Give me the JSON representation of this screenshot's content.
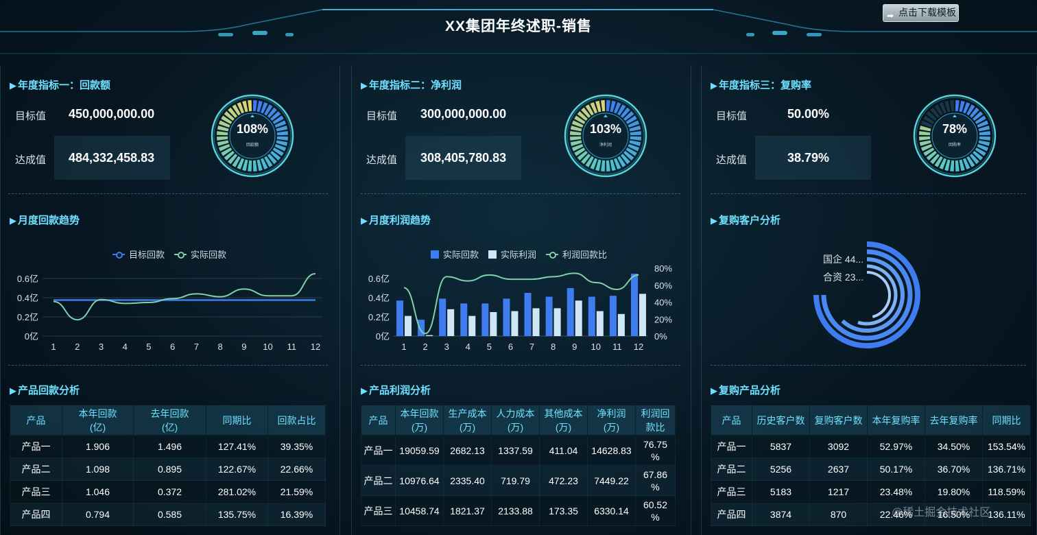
{
  "header": {
    "title": "XX集团年终述职-销售",
    "download_label": "点击下载模板"
  },
  "panels": [
    {
      "kpi_title": "年度指标一：回款额",
      "target_label": "目标值",
      "target_value": "450,000,000.00",
      "achieved_label": "达成值",
      "achieved_value": "484,332,458.83",
      "gauge_pct": "108%",
      "gauge_sub": "回款额",
      "gauge_fill": 1.0
    },
    {
      "kpi_title": "年度指标二：净利润",
      "target_label": "目标值",
      "target_value": "300,000,000.00",
      "achieved_label": "达成值",
      "achieved_value": "308,405,780.83",
      "gauge_pct": "103%",
      "gauge_sub": "净利润",
      "gauge_fill": 1.0
    },
    {
      "kpi_title": "年度指标三：复购率",
      "target_label": "目标值",
      "target_value": "50.00%",
      "achieved_label": "达成值",
      "achieved_value": "38.79%",
      "gauge_pct": "78%",
      "gauge_sub": "回购率",
      "gauge_fill": 0.78
    }
  ],
  "sections": {
    "monthly_payment": "月度回款趋势",
    "monthly_profit": "月度利润趋势",
    "repurchase_customers": "复购客户分析",
    "product_payment": "产品回款分析",
    "product_profit": "产品利润分析",
    "repurchase_products": "复购产品分析"
  },
  "chart_data": [
    {
      "type": "line",
      "x": [
        "1",
        "2",
        "3",
        "4",
        "5",
        "6",
        "7",
        "8",
        "9",
        "10",
        "11",
        "12"
      ],
      "yticks": [
        "0亿",
        "0.2亿",
        "0.4亿",
        "0.6亿"
      ],
      "ylim": [
        0,
        0.7
      ],
      "series": [
        {
          "name": "目标回款",
          "color": "#3f7cf0",
          "values": [
            0.375,
            0.375,
            0.375,
            0.375,
            0.375,
            0.375,
            0.375,
            0.375,
            0.375,
            0.375,
            0.375,
            0.375
          ]
        },
        {
          "name": "实际回款",
          "color": "#7fd1a8",
          "values": [
            0.36,
            0.17,
            0.38,
            0.34,
            0.35,
            0.39,
            0.44,
            0.41,
            0.49,
            0.42,
            0.42,
            0.65
          ]
        }
      ]
    },
    {
      "type": "bar",
      "categories": [
        "1",
        "2",
        "3",
        "4",
        "5",
        "6",
        "7",
        "8",
        "9",
        "10",
        "11",
        "12"
      ],
      "yticks": [
        "0亿",
        "0.2亿",
        "0.4亿",
        "0.6亿"
      ],
      "ylim": [
        0,
        0.7
      ],
      "y2ticks": [
        "0%",
        "20%",
        "40%",
        "60%",
        "80%"
      ],
      "y2lim": [
        0,
        80
      ],
      "series": [
        {
          "name": "实际回款",
          "color": "#3f7cf0",
          "values": [
            0.37,
            0.17,
            0.39,
            0.34,
            0.34,
            0.39,
            0.45,
            0.41,
            0.5,
            0.41,
            0.42,
            0.65
          ]
        },
        {
          "name": "实际利润",
          "color": "#cfe6f7",
          "values": [
            0.21,
            0.01,
            0.28,
            0.21,
            0.25,
            0.26,
            0.29,
            0.29,
            0.37,
            0.26,
            0.23,
            0.44
          ]
        },
        {
          "name": "利润回款比",
          "color": "#7fd1a8",
          "type": "line",
          "values": [
            57,
            3,
            70,
            65,
            72,
            67,
            67,
            70,
            74,
            63,
            55,
            72
          ]
        }
      ]
    },
    {
      "type": "pie",
      "categories": [
        "国企",
        "合资"
      ],
      "category_labels": [
        "国企 44...",
        "合资 23..."
      ],
      "values": [
        44,
        23
      ]
    }
  ],
  "table_payment": {
    "headers": [
      "产品",
      "本年回款\n(亿)",
      "去年回款\n(亿)",
      "同期比",
      "回款占比"
    ],
    "rows": [
      [
        "产品一",
        "1.906",
        "1.496",
        "127.41%",
        "39.35%"
      ],
      [
        "产品二",
        "1.098",
        "0.895",
        "122.67%",
        "22.66%"
      ],
      [
        "产品三",
        "1.046",
        "0.372",
        "281.02%",
        "21.59%"
      ],
      [
        "产品四",
        "0.794",
        "0.585",
        "135.75%",
        "16.39%"
      ]
    ]
  },
  "table_profit": {
    "headers": [
      "产品",
      "本年回款\n(万)",
      "生产成本\n(万)",
      "人力成本\n(万)",
      "其他成本\n(万)",
      "净利润\n(万)",
      "利润回\n款比"
    ],
    "rows": [
      [
        "产品一",
        "19059.59",
        "2682.13",
        "1337.59",
        "411.04",
        "14628.83",
        "76.75\n%"
      ],
      [
        "产品二",
        "10976.64",
        "2335.40",
        "719.79",
        "472.23",
        "7449.22",
        "67.86\n%"
      ],
      [
        "产品三",
        "10458.74",
        "1821.37",
        "2133.88",
        "173.35",
        "6330.14",
        "60.52\n%"
      ]
    ]
  },
  "table_repurchase": {
    "headers": [
      "产品",
      "历史客户数",
      "复购客户数",
      "本年复购率",
      "去年复购率",
      "同期比"
    ],
    "rows": [
      [
        "产品一",
        "5837",
        "3092",
        "52.97%",
        "34.50%",
        "153.54%"
      ],
      [
        "产品二",
        "5256",
        "2637",
        "50.17%",
        "36.70%",
        "136.71%"
      ],
      [
        "产品三",
        "5183",
        "1217",
        "23.48%",
        "19.80%",
        "118.59%"
      ],
      [
        "产品四",
        "3874",
        "870",
        "22.46%",
        "16.50%",
        "136.11%"
      ]
    ]
  },
  "watermark": "@稀土掘金技术社区",
  "colors": {
    "accent": "#6ee0ff",
    "bar_blue": "#3f7cf0",
    "bar_light": "#cfe6f7",
    "line_green": "#7fd1a8"
  }
}
